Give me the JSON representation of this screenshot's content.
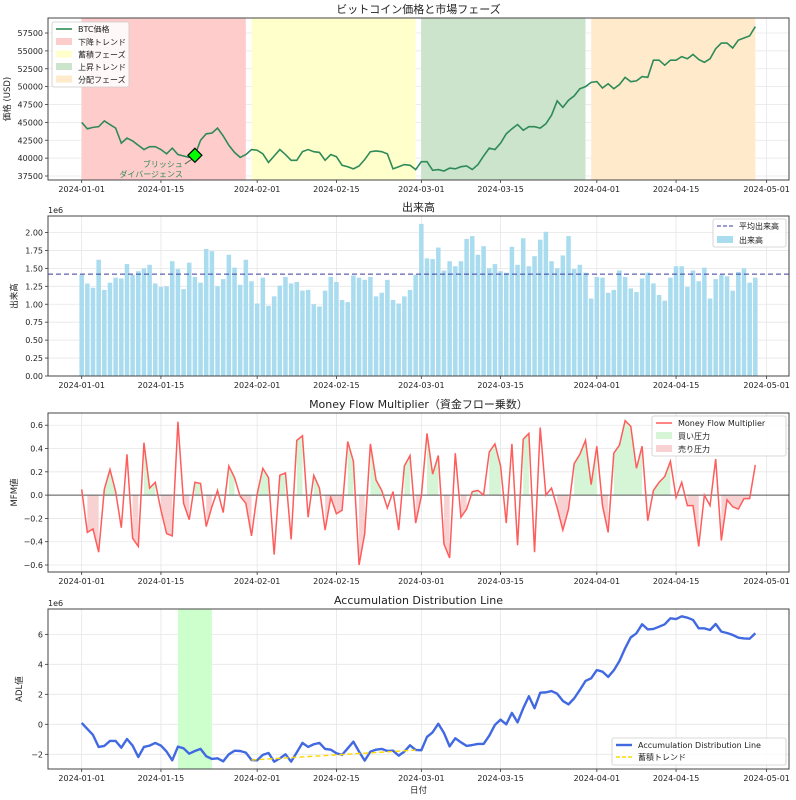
{
  "figure": {
    "xlabel": "日付"
  },
  "chart_data": [
    {
      "type": "line",
      "title": "ビットコイン価格と市場フェーズ",
      "ylabel": "価格 (USD)",
      "xlabel": "",
      "ylim": [
        36940,
        59600
      ],
      "yticks": [
        37500,
        40000,
        42500,
        45000,
        47500,
        50000,
        52500,
        55000,
        57500
      ],
      "xticks": [
        "2024-01-01",
        "2024-01-15",
        "2024-02-01",
        "2024-02-15",
        "2024-03-01",
        "2024-03-15",
        "2024-04-01",
        "2024-04-15",
        "2024-05-01"
      ],
      "grid": true,
      "legend": "upper-left",
      "x": [
        "2024-01-01",
        "2024-01-02",
        "2024-01-03",
        "2024-01-04",
        "2024-01-05",
        "2024-01-06",
        "2024-01-07",
        "2024-01-08",
        "2024-01-09",
        "2024-01-10",
        "2024-01-11",
        "2024-01-12",
        "2024-01-13",
        "2024-01-14",
        "2024-01-15",
        "2024-01-16",
        "2024-01-17",
        "2024-01-18",
        "2024-01-19",
        "2024-01-20",
        "2024-01-21",
        "2024-01-22",
        "2024-01-23",
        "2024-01-24",
        "2024-01-25",
        "2024-01-26",
        "2024-01-27",
        "2024-01-28",
        "2024-01-29",
        "2024-01-30",
        "2024-01-31",
        "2024-02-01",
        "2024-02-02",
        "2024-02-03",
        "2024-02-04",
        "2024-02-05",
        "2024-02-06",
        "2024-02-07",
        "2024-02-08",
        "2024-02-09",
        "2024-02-10",
        "2024-02-11",
        "2024-02-12",
        "2024-02-13",
        "2024-02-14",
        "2024-02-15",
        "2024-02-16",
        "2024-02-17",
        "2024-02-18",
        "2024-02-19",
        "2024-02-20",
        "2024-02-21",
        "2024-02-22",
        "2024-02-23",
        "2024-02-24",
        "2024-02-25",
        "2024-02-26",
        "2024-02-27",
        "2024-02-28",
        "2024-02-29",
        "2024-03-01",
        "2024-03-02",
        "2024-03-03",
        "2024-03-04",
        "2024-03-05",
        "2024-03-06",
        "2024-03-07",
        "2024-03-08",
        "2024-03-09",
        "2024-03-10",
        "2024-03-11",
        "2024-03-12",
        "2024-03-13",
        "2024-03-14",
        "2024-03-15",
        "2024-03-16",
        "2024-03-17",
        "2024-03-18",
        "2024-03-19",
        "2024-03-20",
        "2024-03-21",
        "2024-03-22",
        "2024-03-23",
        "2024-03-24",
        "2024-03-25",
        "2024-03-26",
        "2024-03-27",
        "2024-03-28",
        "2024-03-29",
        "2024-03-30",
        "2024-03-31",
        "2024-04-01",
        "2024-04-02",
        "2024-04-03",
        "2024-04-04",
        "2024-04-05",
        "2024-04-06",
        "2024-04-07",
        "2024-04-08",
        "2024-04-09",
        "2024-04-10",
        "2024-04-11",
        "2024-04-12",
        "2024-04-13",
        "2024-04-14",
        "2024-04-15",
        "2024-04-16",
        "2024-04-17",
        "2024-04-18",
        "2024-04-19",
        "2024-04-20",
        "2024-04-21",
        "2024-04-22",
        "2024-04-23",
        "2024-04-24",
        "2024-04-25",
        "2024-04-26",
        "2024-04-27",
        "2024-04-28",
        "2024-04-29"
      ],
      "series": [
        {
          "name": "BTC価格",
          "color": "#2e8b57",
          "values": [
            45000,
            44100,
            44300,
            44400,
            45200,
            44700,
            44200,
            42100,
            42800,
            42400,
            41800,
            41200,
            41600,
            41600,
            41200,
            40600,
            41400,
            40500,
            40300,
            40100,
            40400,
            42500,
            43400,
            43500,
            44200,
            43100,
            41800,
            40800,
            40100,
            40500,
            41200,
            41100,
            40600,
            39400,
            40300,
            41200,
            40500,
            39700,
            39700,
            40900,
            41200,
            40900,
            40800,
            39700,
            40500,
            40200,
            39000,
            38800,
            38500,
            38900,
            39800,
            40900,
            41000,
            40900,
            40600,
            38500,
            38800,
            39100,
            39000,
            38400,
            39500,
            39500,
            38300,
            38400,
            38200,
            38600,
            38500,
            38800,
            38900,
            38400,
            39100,
            40300,
            41400,
            41200,
            42100,
            43400,
            44100,
            44700,
            43900,
            44400,
            44400,
            44200,
            44800,
            46000,
            48000,
            47100,
            48100,
            48700,
            49700,
            50000,
            50600,
            50700,
            49800,
            50400,
            49700,
            50300,
            51300,
            50700,
            50800,
            51400,
            51300,
            53700,
            53700,
            53000,
            53700,
            53700,
            54200,
            53900,
            54500,
            53800,
            53400,
            53900,
            55300,
            56100,
            56100,
            55400,
            56500,
            56800,
            57100,
            58400
          ]
        }
      ],
      "phases": [
        {
          "name": "下降トレンド",
          "start": "2024-01-01",
          "end": "2024-01-30",
          "color": "#ffcccc"
        },
        {
          "name": "蓄積フェーズ",
          "start": "2024-01-31",
          "end": "2024-02-29",
          "color": "#ffffcc"
        },
        {
          "name": "上昇トレンド",
          "start": "2024-03-01",
          "end": "2024-03-30",
          "color": "#cce4cc"
        },
        {
          "name": "分配フェーズ",
          "start": "2024-03-31",
          "end": "2024-04-29",
          "color": "#ffebcc"
        }
      ],
      "annotation": {
        "text_line1": "ブリッシュ",
        "text_line2": "ダイバージェンス",
        "x": "2024-01-21",
        "y": 40400,
        "marker_color": "#00ff00",
        "text_color": "#2e8b57"
      }
    },
    {
      "type": "bar",
      "title": "出来高",
      "ylabel": "出来高",
      "xlabel": "",
      "offset_label": "1e6",
      "ylim": [
        0,
        2.23
      ],
      "yticks": [
        "0.00",
        "0.25",
        "0.50",
        "0.75",
        "1.00",
        "1.25",
        "1.50",
        "1.75",
        "2.00"
      ],
      "unit_multiplier": 1000000,
      "grid": true,
      "legend": "upper-right",
      "series": [
        {
          "name": "出来高",
          "color": "#87ceeb",
          "values": [
            1.41,
            1.29,
            1.23,
            1.62,
            1.2,
            1.3,
            1.37,
            1.36,
            1.56,
            1.41,
            1.46,
            1.5,
            1.55,
            1.29,
            1.24,
            1.25,
            1.6,
            1.49,
            1.21,
            1.58,
            1.38,
            1.3,
            1.77,
            1.74,
            1.25,
            1.35,
            1.69,
            1.51,
            1.27,
            1.62,
            1.32,
            1.01,
            1.37,
            0.98,
            1.11,
            1.26,
            1.38,
            1.29,
            1.31,
            1.19,
            1.2,
            1.0,
            0.97,
            1.19,
            1.38,
            1.31,
            1.06,
            1.03,
            1.4,
            1.37,
            1.34,
            1.38,
            1.11,
            1.16,
            1.34,
            1.06,
            1.01,
            1.11,
            1.2,
            1.41,
            2.12,
            1.64,
            1.63,
            1.79,
            1.47,
            1.6,
            1.53,
            1.6,
            1.91,
            1.95,
            1.69,
            1.81,
            1.5,
            1.56,
            1.46,
            1.44,
            1.8,
            1.55,
            1.92,
            1.53,
            1.67,
            1.9,
            2.01,
            1.6,
            1.5,
            1.68,
            1.95,
            1.49,
            1.55,
            1.44,
            1.08,
            1.38,
            1.37,
            1.16,
            1.2,
            1.47,
            1.38,
            1.22,
            1.17,
            1.36,
            1.44,
            1.29,
            1.13,
            1.05,
            1.37,
            1.53,
            1.53,
            1.24,
            1.47,
            1.32,
            1.51,
            1.08,
            1.35,
            1.41,
            1.39,
            1.19,
            1.45,
            1.5,
            1.3,
            1.37
          ]
        },
        {
          "name": "平均出来高",
          "color": "#3a3aa0",
          "value": 1.42,
          "style": "dashed"
        }
      ]
    },
    {
      "type": "line",
      "title": "Money Flow Multiplier（資金フロー乗数）",
      "ylabel": "MFM値",
      "xlabel": "",
      "ylim": [
        -0.66,
        0.705
      ],
      "yticks": [
        "−0.6",
        "−0.4",
        "−0.2",
        "0.0",
        "0.2",
        "0.4",
        "0.6"
      ],
      "ytick_values": [
        -0.6,
        -0.4,
        -0.2,
        0,
        0.2,
        0.4,
        0.6
      ],
      "grid": true,
      "legend": "upper-right",
      "series": [
        {
          "name": "Money Flow Multiplier",
          "color": "#ff5c5c",
          "values": [
            0.05,
            -0.32,
            -0.29,
            -0.49,
            0.05,
            0.22,
            0.03,
            -0.28,
            0.35,
            -0.37,
            -0.44,
            0.45,
            0.06,
            0.11,
            -0.13,
            -0.33,
            -0.35,
            0.63,
            -0.07,
            -0.21,
            0.11,
            0.1,
            -0.27,
            -0.1,
            0.04,
            -0.15,
            0.25,
            0.15,
            -0.01,
            -0.07,
            -0.35,
            0.01,
            0.23,
            0.15,
            -0.51,
            0.17,
            0.19,
            -0.38,
            0.47,
            0.51,
            -0.19,
            0.17,
            0.06,
            -0.3,
            -0.02,
            -0.16,
            -0.13,
            0.46,
            0.29,
            -0.6,
            -0.33,
            0.44,
            0.13,
            0.04,
            -0.11,
            0.03,
            -0.3,
            0.25,
            0.34,
            -0.24,
            -0.01,
            0.53,
            0.18,
            0.34,
            -0.42,
            -0.54,
            0.36,
            -0.19,
            -0.12,
            0.03,
            0.04,
            0.0,
            0.37,
            0.44,
            0.25,
            -0.24,
            0.44,
            -0.43,
            0.48,
            0.53,
            -0.49,
            0.58,
            0.0,
            0.06,
            -0.11,
            -0.3,
            -0.12,
            0.27,
            0.35,
            0.47,
            0.09,
            0.42,
            -0.09,
            -0.32,
            0.36,
            0.43,
            0.64,
            0.59,
            0.23,
            0.42,
            -0.22,
            0.04,
            0.11,
            0.16,
            0.29,
            -0.02,
            0.11,
            -0.09,
            -0.09,
            -0.44,
            0.0,
            -0.09,
            0.31,
            -0.39,
            -0.04,
            -0.1,
            -0.12,
            -0.03,
            -0.03,
            0.26
          ]
        },
        {
          "name": "買い圧力",
          "color": "#d6f5d6"
        },
        {
          "name": "売り圧力",
          "color": "#f8d2d2"
        }
      ]
    },
    {
      "type": "line",
      "title": "Accumulation Distribution Line",
      "ylabel": "ADL値",
      "xlabel": "日付",
      "offset_label": "1e6",
      "ylim": [
        -2.98,
        7.69
      ],
      "yticks": [
        "−2",
        "0",
        "2",
        "4",
        "6"
      ],
      "ytick_values": [
        -2,
        0,
        2,
        4,
        6
      ],
      "unit_multiplier": 1000000,
      "grid": true,
      "legend": "lower-right",
      "series": [
        {
          "name": "Accumulation Distribution Line",
          "color": "#4169e1",
          "values": [
            0.09,
            -0.31,
            -0.71,
            -1.51,
            -1.44,
            -1.11,
            -1.11,
            -1.56,
            -0.98,
            -1.42,
            -2.18,
            -1.51,
            -1.42,
            -1.24,
            -1.42,
            -1.82,
            -2.4,
            -1.49,
            -1.6,
            -1.96,
            -1.78,
            -1.64,
            -2.13,
            -2.31,
            -2.27,
            -2.47,
            -2.0,
            -1.76,
            -1.78,
            -1.89,
            -2.38,
            -2.4,
            -2.04,
            -1.91,
            -2.49,
            -2.27,
            -2.0,
            -2.49,
            -1.87,
            -1.24,
            -1.51,
            -1.33,
            -1.24,
            -1.64,
            -1.69,
            -1.93,
            -2.04,
            -1.6,
            -1.16,
            -1.82,
            -2.42,
            -1.82,
            -1.69,
            -1.64,
            -1.78,
            -1.76,
            -2.09,
            -1.82,
            -1.4,
            -1.71,
            -1.73,
            -0.84,
            -0.53,
            0.04,
            -0.58,
            -1.47,
            -0.93,
            -1.2,
            -1.44,
            -1.38,
            -1.31,
            -1.31,
            -0.76,
            -0.04,
            0.31,
            0.0,
            0.76,
            0.13,
            1.07,
            1.87,
            1.07,
            2.11,
            2.13,
            2.22,
            2.04,
            1.56,
            1.33,
            1.73,
            2.29,
            2.89,
            3.07,
            3.62,
            3.51,
            3.16,
            3.6,
            4.22,
            5.07,
            5.8,
            6.07,
            6.67,
            6.33,
            6.36,
            6.51,
            6.67,
            7.07,
            7.02,
            7.2,
            7.11,
            6.96,
            6.4,
            6.4,
            6.29,
            6.69,
            6.18,
            6.09,
            5.96,
            5.78,
            5.73,
            5.71,
            6.07
          ]
        },
        {
          "name": "蓄積トレンド",
          "color": "#ffd700",
          "style": "dashed",
          "start": "2024-01-31",
          "end": "2024-02-29",
          "values": [
            -2.38,
            -1.72
          ]
        }
      ],
      "highlight_span": {
        "start": "2024-01-18",
        "end": "2024-01-24",
        "color": "#ccffcc"
      }
    }
  ]
}
